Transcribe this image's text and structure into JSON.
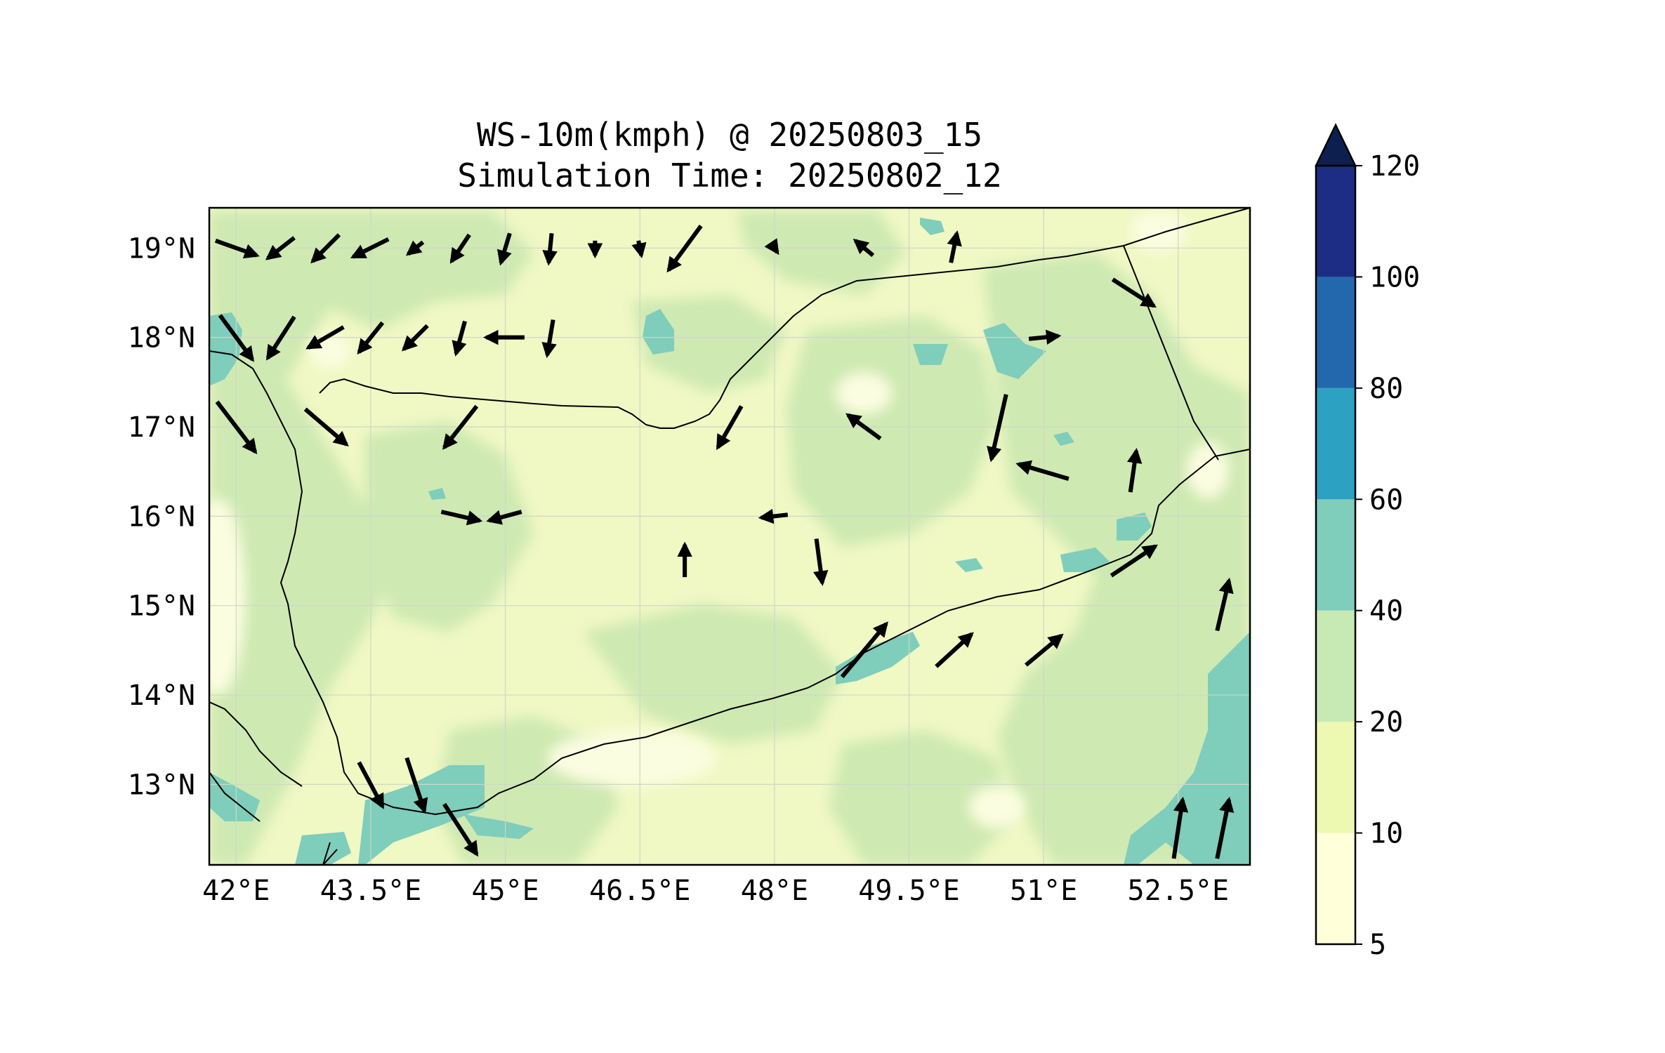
{
  "title_line1": "WS-10m(kmph) @ 20250803_15",
  "title_line2": "Simulation Time: 20250802_12",
  "map": {
    "lon_range": [
      41.7,
      53.3
    ],
    "lat_range": [
      12.1,
      19.45
    ],
    "lon_ticks": [
      {
        "value": 42.0,
        "label": "42°E"
      },
      {
        "value": 43.5,
        "label": "43.5°E"
      },
      {
        "value": 45.0,
        "label": "45°E"
      },
      {
        "value": 46.5,
        "label": "46.5°E"
      },
      {
        "value": 48.0,
        "label": "48°E"
      },
      {
        "value": 49.5,
        "label": "49.5°E"
      },
      {
        "value": 51.0,
        "label": "51°E"
      },
      {
        "value": 52.5,
        "label": "52.5°E"
      }
    ],
    "lat_ticks": [
      {
        "value": 19.0,
        "label": "19°N"
      },
      {
        "value": 18.0,
        "label": "18°N"
      },
      {
        "value": 17.0,
        "label": "17°N"
      },
      {
        "value": 16.0,
        "label": "16°N"
      },
      {
        "value": 15.0,
        "label": "15°N"
      },
      {
        "value": 14.0,
        "label": "14°N"
      },
      {
        "value": 13.0,
        "label": "13°N"
      }
    ],
    "gridlines": true
  },
  "colorbar": {
    "levels": [
      5,
      10,
      20,
      40,
      60,
      80,
      100,
      120
    ],
    "labels": [
      "5",
      "10",
      "20",
      "40",
      "60",
      "80",
      "100",
      "120"
    ],
    "colors": [
      "#ffffd9",
      "#edf8b1",
      "#c7e9b4",
      "#7fcdbb",
      "#2ca1c1",
      "#2368ad",
      "#1d2d85"
    ],
    "extend_color": "#0c1f4f",
    "extend": "max"
  },
  "wind_vectors_approx_kmph": [
    {
      "lon": 42.0,
      "lat": 19.0,
      "u": 28,
      "v": -10
    },
    {
      "lon": 42.5,
      "lat": 19.0,
      "u": -18,
      "v": -14
    },
    {
      "lon": 43.0,
      "lat": 19.0,
      "u": -18,
      "v": -18
    },
    {
      "lon": 43.5,
      "lat": 19.0,
      "u": -24,
      "v": -12
    },
    {
      "lon": 44.0,
      "lat": 19.0,
      "u": -10,
      "v": -8
    },
    {
      "lon": 44.5,
      "lat": 19.0,
      "u": -12,
      "v": -18
    },
    {
      "lon": 45.0,
      "lat": 19.0,
      "u": -6,
      "v": -20
    },
    {
      "lon": 45.5,
      "lat": 19.0,
      "u": -2,
      "v": -20
    },
    {
      "lon": 46.0,
      "lat": 19.0,
      "u": 0,
      "v": -10
    },
    {
      "lon": 46.5,
      "lat": 19.0,
      "u": 2,
      "v": -10
    },
    {
      "lon": 47.0,
      "lat": 19.0,
      "u": -22,
      "v": -30
    },
    {
      "lon": 48.0,
      "lat": 19.0,
      "u": 4,
      "v": -6
    },
    {
      "lon": 49.0,
      "lat": 19.0,
      "u": -12,
      "v": 10
    },
    {
      "lon": 50.0,
      "lat": 19.0,
      "u": 4,
      "v": 20
    },
    {
      "lon": 51.0,
      "lat": 18.0,
      "u": 20,
      "v": 2
    },
    {
      "lon": 52.0,
      "lat": 18.5,
      "u": 28,
      "v": -18
    },
    {
      "lon": 42.0,
      "lat": 18.0,
      "u": 22,
      "v": -30
    },
    {
      "lon": 42.5,
      "lat": 18.0,
      "u": -18,
      "v": -28
    },
    {
      "lon": 43.0,
      "lat": 18.0,
      "u": -24,
      "v": -14
    },
    {
      "lon": 43.5,
      "lat": 18.0,
      "u": -16,
      "v": -20
    },
    {
      "lon": 44.0,
      "lat": 18.0,
      "u": -16,
      "v": -16
    },
    {
      "lon": 44.5,
      "lat": 18.0,
      "u": -6,
      "v": -22
    },
    {
      "lon": 45.0,
      "lat": 18.0,
      "u": -26,
      "v": 0
    },
    {
      "lon": 45.5,
      "lat": 18.0,
      "u": -4,
      "v": -24
    },
    {
      "lon": 42.0,
      "lat": 17.0,
      "u": 26,
      "v": -34
    },
    {
      "lon": 43.0,
      "lat": 17.0,
      "u": 28,
      "v": -24
    },
    {
      "lon": 44.5,
      "lat": 17.0,
      "u": -22,
      "v": -28
    },
    {
      "lon": 47.5,
      "lat": 17.0,
      "u": -16,
      "v": -28
    },
    {
      "lon": 49.0,
      "lat": 17.0,
      "u": -22,
      "v": 16
    },
    {
      "lon": 50.5,
      "lat": 17.0,
      "u": -10,
      "v": -44
    },
    {
      "lon": 51.0,
      "lat": 16.5,
      "u": -34,
      "v": 10
    },
    {
      "lon": 52.0,
      "lat": 16.5,
      "u": 4,
      "v": 28
    },
    {
      "lon": 44.5,
      "lat": 16.0,
      "u": 26,
      "v": -6
    },
    {
      "lon": 45.0,
      "lat": 16.0,
      "u": -22,
      "v": -6
    },
    {
      "lon": 48.0,
      "lat": 16.0,
      "u": -18,
      "v": -2
    },
    {
      "lon": 48.5,
      "lat": 15.5,
      "u": 4,
      "v": -30
    },
    {
      "lon": 47.0,
      "lat": 15.5,
      "u": 0,
      "v": 22
    },
    {
      "lon": 52.0,
      "lat": 15.5,
      "u": 30,
      "v": 20
    },
    {
      "lon": 53.0,
      "lat": 15.0,
      "u": 8,
      "v": 34
    },
    {
      "lon": 49.0,
      "lat": 14.5,
      "u": 30,
      "v": 36
    },
    {
      "lon": 50.0,
      "lat": 14.5,
      "u": 24,
      "v": 22
    },
    {
      "lon": 51.0,
      "lat": 14.5,
      "u": 24,
      "v": 20
    },
    {
      "lon": 43.5,
      "lat": 13.0,
      "u": 16,
      "v": -30
    },
    {
      "lon": 44.0,
      "lat": 13.0,
      "u": 12,
      "v": -36
    },
    {
      "lon": 44.5,
      "lat": 12.5,
      "u": 22,
      "v": -34
    },
    {
      "lon": 52.5,
      "lat": 12.5,
      "u": 6,
      "v": 40
    },
    {
      "lon": 53.0,
      "lat": 12.5,
      "u": 8,
      "v": 40
    }
  ]
}
